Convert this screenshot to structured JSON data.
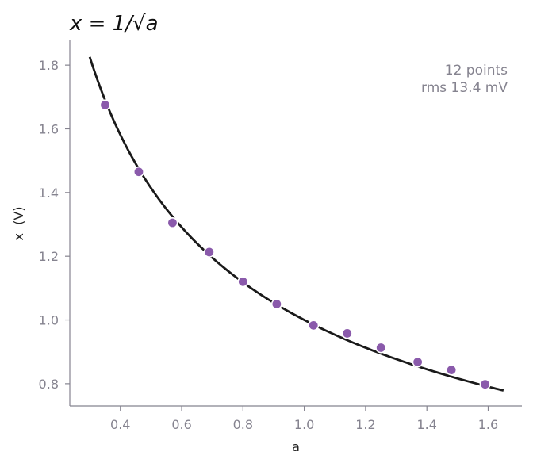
{
  "chart_data": {
    "type": "scatter",
    "title": "x = 1/√a",
    "xlabel": "a",
    "ylabel": "x  (V)",
    "xlim": [
      0.235,
      1.71
    ],
    "ylim": [
      0.73,
      1.88
    ],
    "x_ticks": [
      0.4,
      0.6,
      0.8,
      1.0,
      1.2,
      1.4,
      1.6
    ],
    "x_tick_labels": [
      "0.4",
      "0.6",
      "0.8",
      "1.0",
      "1.2",
      "1.4",
      "1.6"
    ],
    "y_ticks": [
      0.8,
      1.0,
      1.2,
      1.4,
      1.6,
      1.8
    ],
    "y_tick_labels": [
      "0.8",
      "1.0",
      "1.2",
      "1.4",
      "1.6",
      "1.8"
    ],
    "grid": false,
    "annotation": {
      "line1": "12 points",
      "line2": "rms 13.4 mV",
      "placement": "top-right"
    },
    "series": [
      {
        "kind": "points",
        "color": "#8a5aab",
        "x": [
          0.35,
          0.46,
          0.57,
          0.69,
          0.8,
          0.91,
          1.03,
          1.14,
          1.25,
          1.37,
          1.48,
          1.59
        ],
        "y": [
          1.675,
          1.465,
          1.305,
          1.213,
          1.12,
          1.05,
          0.983,
          0.958,
          0.913,
          0.868,
          0.843,
          0.798
        ]
      },
      {
        "kind": "curve",
        "color": "#1a1a1a",
        "formula": "x = 1/sqrt(a)",
        "domain": [
          0.3,
          1.65
        ]
      }
    ]
  }
}
